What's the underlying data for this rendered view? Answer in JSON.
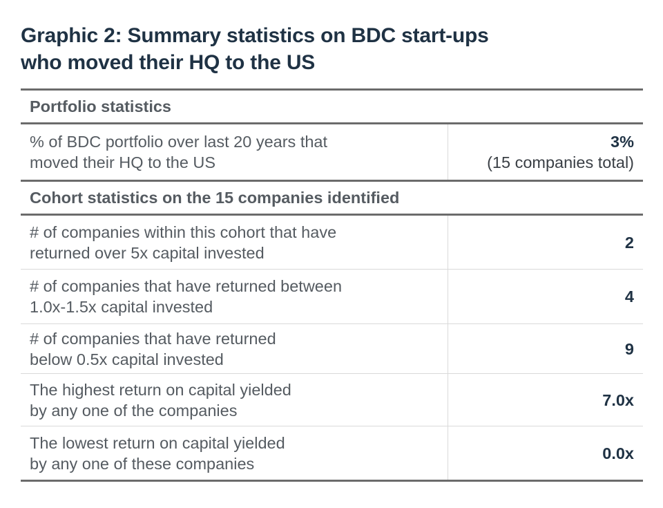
{
  "title": {
    "line1": "Graphic 2: Summary statistics on BDC start-ups",
    "line2": "who moved their HQ to the US"
  },
  "table": {
    "section1": {
      "heading": "Portfolio statistics",
      "rows": [
        {
          "label_line1": "% of BDC portfolio over last 20 years that",
          "label_line2": "moved their HQ to the US",
          "value": "3%",
          "value_sub": "(15 companies total)"
        }
      ]
    },
    "section2": {
      "heading": "Cohort statistics on the 15 companies identified",
      "rows": [
        {
          "label_line1": "# of companies within this cohort that have",
          "label_line2": "returned over 5x capital invested",
          "value": "2"
        },
        {
          "label_line1": "# of companies that have returned between",
          "label_line2": "1.0x-1.5x capital invested",
          "value": "4"
        },
        {
          "label_line1": "# of companies that have returned",
          "label_line2": "below 0.5x capital invested",
          "value": "9"
        },
        {
          "label_line1": "The highest return on capital yielded",
          "label_line2": "by any one of the companies",
          "value": "7.0x"
        },
        {
          "label_line1": "The lowest return on capital yielded",
          "label_line2": "by any one of these companies",
          "value": "0.0x"
        }
      ]
    }
  },
  "colors": {
    "title": "#1f3244",
    "text": "#555b61",
    "rule_thick": "#6b6b6b",
    "rule_thin": "#d9d9d9"
  }
}
